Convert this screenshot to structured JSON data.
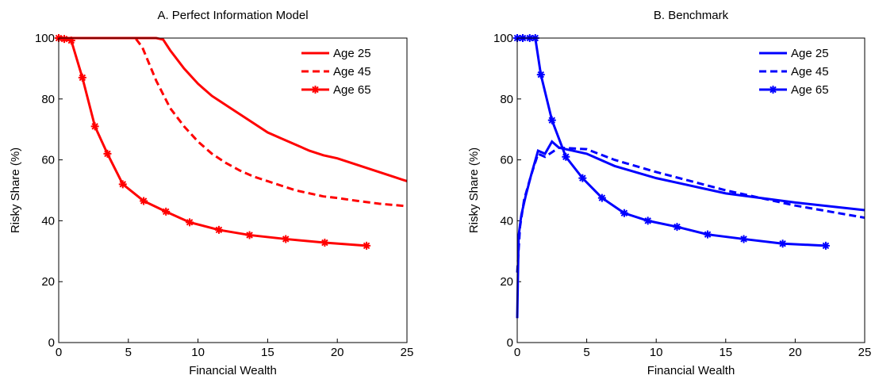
{
  "chart_data": [
    {
      "type": "line",
      "title": "A. Perfect Information Model",
      "xlabel": "Financial Wealth",
      "ylabel": "Risky Share (%)",
      "xlim": [
        0,
        25
      ],
      "ylim": [
        0,
        100
      ],
      "xticks": [
        0,
        5,
        10,
        15,
        20,
        25
      ],
      "yticks": [
        0,
        20,
        40,
        60,
        80,
        100
      ],
      "legend": "upper right",
      "series": [
        {
          "name": "Age 25",
          "color": "#ff0000",
          "linestyle": "solid",
          "marker": "none",
          "x": [
            0,
            2,
            4,
            6,
            7,
            7.5,
            8,
            9,
            10,
            11,
            12,
            13,
            14,
            15,
            16,
            17,
            18,
            19,
            20,
            21,
            22,
            23,
            24,
            25
          ],
          "values": [
            100,
            100,
            100,
            100,
            100,
            99.5,
            96,
            90,
            85,
            81,
            78,
            75,
            72,
            69,
            67,
            65,
            63,
            61.5,
            60.5,
            59,
            57.5,
            56,
            54.5,
            53
          ]
        },
        {
          "name": "Age 45",
          "color": "#ff0000",
          "linestyle": "dashed",
          "marker": "none",
          "x": [
            0,
            2,
            4,
            5.5,
            6,
            7,
            8,
            9,
            10,
            11,
            12,
            13,
            14,
            15,
            16,
            17,
            18,
            19,
            20,
            21,
            22,
            23,
            24,
            25
          ],
          "values": [
            100,
            100,
            100,
            100,
            97,
            86,
            77,
            71,
            66,
            62,
            59,
            56.5,
            54.5,
            53,
            51.5,
            50,
            49,
            48,
            47.5,
            46.8,
            46.2,
            45.6,
            45.2,
            44.8
          ]
        },
        {
          "name": "Age 65",
          "color": "#ff0000",
          "linestyle": "solid",
          "marker": "asterisk",
          "x": [
            0,
            0.4,
            0.9,
            1.7,
            2.6,
            3.5,
            4.6,
            6.1,
            7.7,
            9.4,
            11.5,
            13.7,
            16.3,
            19.1,
            22.1
          ],
          "values": [
            100,
            99.7,
            99.2,
            87,
            71,
            62,
            52,
            46.5,
            43,
            39.5,
            37,
            35.3,
            34,
            32.8,
            31.8
          ]
        }
      ]
    },
    {
      "type": "line",
      "title": "B. Benchmark",
      "xlabel": "Financial Wealth",
      "ylabel": "Risky Share (%)",
      "xlim": [
        0,
        25
      ],
      "ylim": [
        0,
        100
      ],
      "xticks": [
        0,
        5,
        10,
        15,
        20,
        25
      ],
      "yticks": [
        0,
        20,
        40,
        60,
        80,
        100
      ],
      "legend": "upper right",
      "series": [
        {
          "name": "Age 25",
          "color": "#0000ff",
          "linestyle": "solid",
          "marker": "none",
          "x": [
            0,
            0.1,
            0.3,
            0.6,
            1,
            1.5,
            2,
            2.5,
            3,
            4,
            5,
            7,
            10,
            12,
            15,
            20,
            25
          ],
          "values": [
            8,
            35,
            42,
            48,
            55,
            63,
            62,
            66,
            64,
            63,
            62,
            58,
            54,
            52,
            49,
            46,
            43.5
          ]
        },
        {
          "name": "Age 45",
          "color": "#0000ff",
          "linestyle": "dashed",
          "marker": "none",
          "x": [
            0,
            0.2,
            0.5,
            1,
            1.5,
            2,
            3,
            5,
            7,
            10,
            15,
            20,
            25
          ],
          "values": [
            23,
            38,
            47,
            55,
            62,
            61,
            64,
            63.5,
            60,
            56,
            50,
            45,
            41
          ]
        },
        {
          "name": "Age 65",
          "color": "#0000ff",
          "linestyle": "solid",
          "marker": "asterisk",
          "x": [
            0,
            0.4,
            0.9,
            1.3,
            1.7,
            2.5,
            3.5,
            4.7,
            6.1,
            7.7,
            9.4,
            11.5,
            13.7,
            16.3,
            19.1,
            22.2
          ],
          "values": [
            100,
            100,
            100,
            100,
            88,
            73,
            61,
            54,
            47.5,
            42.5,
            40,
            38,
            35.5,
            34,
            32.5,
            31.8
          ]
        }
      ]
    }
  ]
}
